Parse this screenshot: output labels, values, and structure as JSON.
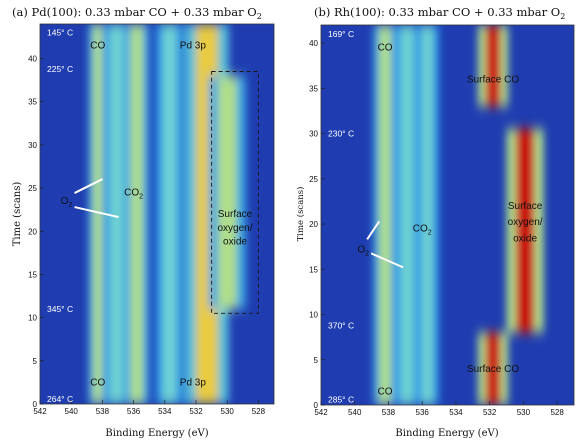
{
  "chart_data": [
    {
      "type": "heatmap",
      "title": "(a) Pd(100): 0.33 mbar CO + 0.33 mbar O",
      "title_subscript": "2",
      "xlabel": "Binding Energy (eV)",
      "ylabel": "Time (scans)",
      "xlim": [
        542,
        527
      ],
      "ylim": [
        0,
        44
      ],
      "xticks": [
        542,
        540,
        538,
        536,
        534,
        532,
        530,
        528
      ],
      "yticks": [
        0,
        5,
        10,
        15,
        20,
        25,
        30,
        35,
        40
      ],
      "colormap": "jet",
      "bands": [
        {
          "x": 538.3,
          "width": 0.6,
          "t0": 0,
          "t1": 44,
          "intensity": 0.55
        },
        {
          "x": 537.1,
          "width": 0.9,
          "t0": 0,
          "t1": 44,
          "intensity": 0.45
        },
        {
          "x": 535.8,
          "width": 0.8,
          "t0": 0,
          "t1": 44,
          "intensity": 0.55
        },
        {
          "x": 533.7,
          "width": 0.9,
          "t0": 0,
          "t1": 44,
          "intensity": 0.45
        },
        {
          "x": 532.1,
          "width": 0.5,
          "t0": 37,
          "t1": 44,
          "intensity": 1.0
        },
        {
          "x": 532.1,
          "width": 0.5,
          "t0": 0,
          "t1": 12,
          "intensity": 1.0
        },
        {
          "x": 531.3,
          "width": 1.4,
          "t0": 0,
          "t1": 44,
          "intensity": 0.7
        },
        {
          "x": 530.0,
          "width": 1.2,
          "t0": 11,
          "t1": 38,
          "intensity": 0.55
        }
      ],
      "temperatures": [
        {
          "label": "145° C",
          "time": 43
        },
        {
          "label": "225° C",
          "time": 38.8
        },
        {
          "label": "345° C",
          "time": 11
        },
        {
          "label": "264° C",
          "time": 0.6
        }
      ],
      "annotations": [
        {
          "text": "CO",
          "x": 538.3,
          "y": 41.5
        },
        {
          "text": "Pd 3p",
          "x": 532.2,
          "y": 41.5
        },
        {
          "text": "CO",
          "x": 536.0,
          "y": 24.5,
          "sub": "2"
        },
        {
          "text": "O",
          "x": 540.3,
          "y": 23.5,
          "sub": "2"
        },
        {
          "text": "Surface",
          "x": 529.5,
          "y": 22.0
        },
        {
          "text": "oxygen/",
          "x": 529.5,
          "y": 20.4
        },
        {
          "text": "oxide",
          "x": 529.5,
          "y": 18.8
        },
        {
          "text": "CO",
          "x": 538.3,
          "y": 2.5
        },
        {
          "text": "Pd 3p",
          "x": 532.2,
          "y": 2.5
        }
      ],
      "region_box": {
        "x0": 531.0,
        "x1": 528.0,
        "t0": 10.5,
        "t1": 38.5
      }
    },
    {
      "type": "heatmap",
      "title": "(b) Rh(100): 0.33 mbar CO + 0.33 mbar O",
      "title_subscript": "2",
      "xlabel": "Binding Energy (eV)",
      "ylabel": "Time (scans)",
      "xlim": [
        542,
        527
      ],
      "ylim": [
        0,
        42
      ],
      "xticks": [
        542,
        540,
        538,
        536,
        534,
        532,
        530,
        528
      ],
      "yticks": [
        0,
        5,
        10,
        15,
        20,
        25,
        30,
        35,
        40
      ],
      "colormap": "jet",
      "bands": [
        {
          "x": 538.2,
          "width": 0.7,
          "t0": 0,
          "t1": 42,
          "intensity": 0.55
        },
        {
          "x": 536.9,
          "width": 0.8,
          "t0": 0,
          "t1": 42,
          "intensity": 0.45
        },
        {
          "x": 535.7,
          "width": 0.7,
          "t0": 0,
          "t1": 42,
          "intensity": 0.45
        },
        {
          "x": 531.8,
          "width": 0.9,
          "t0": 33,
          "t1": 42,
          "intensity": 1.0
        },
        {
          "x": 531.8,
          "width": 0.9,
          "t0": 0,
          "t1": 8,
          "intensity": 1.0
        },
        {
          "x": 529.9,
          "width": 1.1,
          "t0": 8,
          "t1": 30.5,
          "intensity": 1.0
        }
      ],
      "temperatures": [
        {
          "label": "169° C",
          "time": 41
        },
        {
          "label": "230° C",
          "time": 30
        },
        {
          "label": "370° C",
          "time": 8.8
        },
        {
          "label": "285° C",
          "time": 0.6
        }
      ],
      "annotations": [
        {
          "text": "CO",
          "x": 538.2,
          "y": 39.5
        },
        {
          "text": "Surface CO",
          "x": 531.8,
          "y": 36.0
        },
        {
          "text": "CO",
          "x": 536.0,
          "y": 19.5,
          "sub": "2"
        },
        {
          "text": "O",
          "x": 539.5,
          "y": 17.2,
          "sub": "2"
        },
        {
          "text": "Surface",
          "x": 529.9,
          "y": 22.0
        },
        {
          "text": "oxygen/",
          "x": 529.9,
          "y": 20.2
        },
        {
          "text": "oxide",
          "x": 529.9,
          "y": 18.4
        },
        {
          "text": "CO",
          "x": 538.2,
          "y": 1.5
        },
        {
          "text": "Surface CO",
          "x": 531.8,
          "y": 4.0
        }
      ]
    }
  ]
}
